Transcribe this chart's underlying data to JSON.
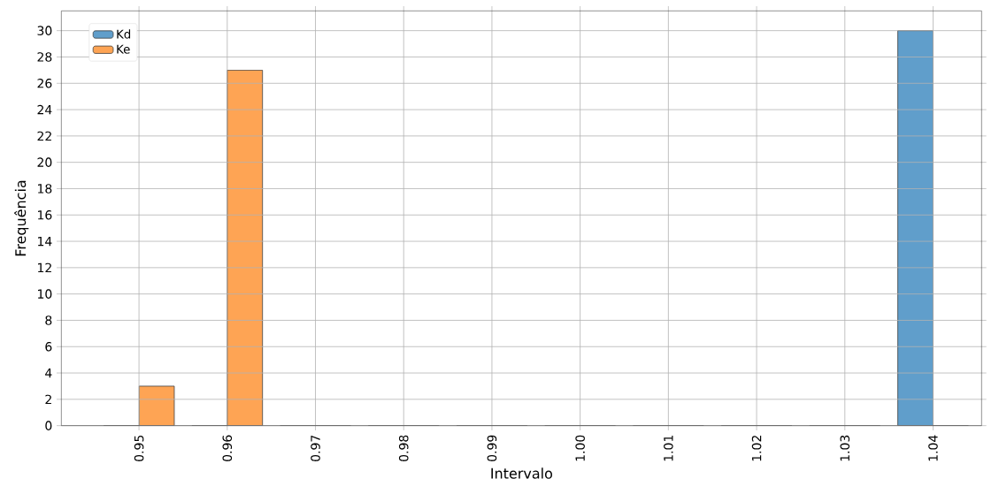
{
  "chart_data": {
    "type": "bar",
    "xlabel": "Intervalo",
    "ylabel": "Frequência",
    "categories": [
      "0.95",
      "0.96",
      "0.97",
      "0.98",
      "0.99",
      "1.00",
      "1.01",
      "1.02",
      "1.03",
      "1.04"
    ],
    "series": [
      {
        "name": "Kd",
        "color": "#609ecb",
        "values": [
          0,
          0,
          0,
          0,
          0,
          0,
          0,
          0,
          0,
          30
        ]
      },
      {
        "name": "Ke",
        "color": "#fea454",
        "values": [
          3,
          27,
          0,
          0,
          0,
          0,
          0,
          0,
          0,
          0
        ]
      }
    ],
    "ylim": [
      0,
      31.5
    ],
    "yticks": [
      0,
      2,
      4,
      6,
      8,
      10,
      12,
      14,
      16,
      18,
      20,
      22,
      24,
      26,
      28,
      30
    ],
    "grid": true,
    "legend": "top left"
  }
}
